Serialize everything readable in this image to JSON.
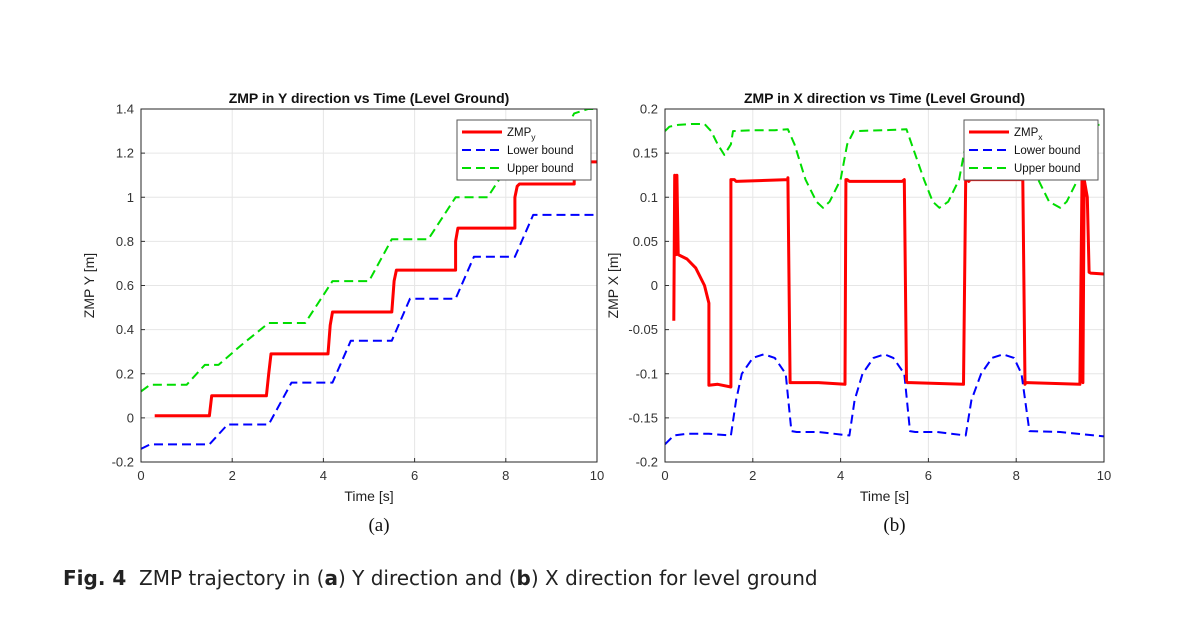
{
  "chart_data": [
    {
      "type": "line",
      "title": "ZMP in Y direction vs Time (Level Ground)",
      "xlabel": "Time [s]",
      "ylabel": "ZMP Y [m]",
      "xlim": [
        0,
        10
      ],
      "ylim": [
        -0.2,
        1.4
      ],
      "xticks": [
        "0",
        "2",
        "4",
        "6",
        "8",
        "10"
      ],
      "yticks": [
        "-0.2",
        "0",
        "0.2",
        "0.4",
        "0.6",
        "0.8",
        "1",
        "1.2",
        "1.4"
      ],
      "grid": true,
      "legend_position": "top-right",
      "panel_label": "(a)",
      "series": [
        {
          "name": "ZMP_y",
          "legend_main": "ZMP",
          "legend_sub": "y",
          "color": "#ff0000",
          "style": "solid",
          "x": [
            0.3,
            1.5,
            1.55,
            2.75,
            2.8,
            2.85,
            3.6,
            4.1,
            4.15,
            4.2,
            5.0,
            5.5,
            5.55,
            5.6,
            6.9,
            6.9,
            6.95,
            7.0,
            8.2,
            8.2,
            8.25,
            8.3,
            9.5,
            9.5,
            9.55,
            10.0
          ],
          "y": [
            0.01,
            0.01,
            0.1,
            0.1,
            0.2,
            0.29,
            0.29,
            0.29,
            0.42,
            0.48,
            0.48,
            0.48,
            0.62,
            0.67,
            0.67,
            0.8,
            0.86,
            0.86,
            0.86,
            1.0,
            1.05,
            1.06,
            1.06,
            1.16,
            1.16,
            1.16
          ]
        },
        {
          "name": "Lower bound",
          "color": "#0000ff",
          "style": "dashed",
          "x": [
            0.0,
            0.2,
            1.5,
            1.9,
            2.8,
            3.3,
            3.6,
            4.2,
            4.6,
            5.0,
            5.5,
            5.9,
            6.3,
            6.9,
            7.3,
            7.6,
            8.2,
            8.6,
            9.5,
            10.0
          ],
          "y": [
            -0.14,
            -0.12,
            -0.12,
            -0.03,
            -0.03,
            0.16,
            0.16,
            0.16,
            0.35,
            0.35,
            0.35,
            0.54,
            0.54,
            0.54,
            0.73,
            0.73,
            0.73,
            0.92,
            0.92,
            0.92
          ]
        },
        {
          "name": "Upper bound",
          "color": "#00dd00",
          "style": "dashed",
          "x": [
            0.0,
            0.2,
            1.0,
            1.4,
            1.7,
            2.2,
            2.8,
            3.0,
            3.6,
            4.2,
            4.5,
            5.0,
            5.5,
            5.7,
            6.3,
            6.9,
            7.2,
            7.6,
            8.2,
            8.5,
            9.0,
            9.5,
            9.8,
            10.0
          ],
          "y": [
            0.12,
            0.15,
            0.15,
            0.24,
            0.24,
            0.33,
            0.43,
            0.43,
            0.43,
            0.62,
            0.62,
            0.62,
            0.81,
            0.81,
            0.81,
            1.0,
            1.0,
            1.0,
            1.19,
            1.19,
            1.19,
            1.38,
            1.4,
            1.4
          ]
        }
      ]
    },
    {
      "type": "line",
      "title": "ZMP in X direction vs Time (Level Ground)",
      "xlabel": "Time [s]",
      "ylabel": "ZMP X [m]",
      "xlim": [
        0,
        10
      ],
      "ylim": [
        -0.2,
        0.2
      ],
      "xticks": [
        "0",
        "2",
        "4",
        "6",
        "8",
        "10"
      ],
      "yticks": [
        "-0.2",
        "-0.15",
        "-0.1",
        "-0.05",
        "0",
        "0.05",
        "0.1",
        "0.15",
        "0.2"
      ],
      "grid": true,
      "legend_position": "top-right",
      "panel_label": "(b)",
      "series": [
        {
          "name": "ZMP_x",
          "legend_main": "ZMP",
          "legend_sub": "x",
          "color": "#ff0000",
          "style": "solid",
          "x": [
            0.2,
            0.22,
            0.25,
            0.27,
            0.3,
            0.5,
            0.7,
            0.9,
            1.0,
            1.0,
            1.2,
            1.5,
            1.5,
            1.58,
            1.62,
            2.8,
            2.8,
            2.85,
            2.9,
            3.5,
            4.1,
            4.12,
            4.15,
            4.2,
            5.4,
            5.45,
            5.5,
            5.52,
            5.6,
            6.8,
            6.85,
            6.9,
            6.92,
            6.95,
            8.15,
            8.2,
            8.22,
            8.25,
            9.45,
            9.5,
            9.52,
            9.55,
            9.62,
            9.66,
            9.7,
            10.0
          ],
          "y": [
            -0.04,
            0.125,
            0.035,
            0.125,
            0.035,
            0.03,
            0.02,
            0.0,
            -0.02,
            -0.113,
            -0.112,
            -0.115,
            0.12,
            0.12,
            0.118,
            0.12,
            0.122,
            -0.11,
            -0.11,
            -0.11,
            -0.112,
            0.12,
            0.12,
            0.118,
            0.118,
            0.12,
            -0.108,
            -0.11,
            -0.11,
            -0.112,
            0.12,
            0.12,
            0.118,
            0.12,
            0.12,
            -0.112,
            -0.11,
            -0.11,
            -0.112,
            0.12,
            -0.11,
            0.12,
            0.1,
            0.015,
            0.014,
            0.013
          ]
        },
        {
          "name": "Lower bound",
          "color": "#0000ff",
          "style": "dashed",
          "x": [
            0.0,
            0.2,
            0.5,
            1.0,
            1.5,
            1.62,
            1.75,
            2.0,
            2.25,
            2.5,
            2.75,
            2.88,
            3.0,
            3.5,
            4.2,
            4.32,
            4.5,
            4.75,
            5.0,
            5.2,
            5.45,
            5.58,
            5.7,
            6.2,
            6.85,
            6.98,
            7.2,
            7.45,
            7.7,
            7.95,
            8.12,
            8.3,
            9.0,
            10.0
          ],
          "y": [
            -0.18,
            -0.17,
            -0.168,
            -0.168,
            -0.17,
            -0.13,
            -0.1,
            -0.082,
            -0.078,
            -0.082,
            -0.1,
            -0.165,
            -0.166,
            -0.166,
            -0.17,
            -0.13,
            -0.1,
            -0.082,
            -0.078,
            -0.082,
            -0.1,
            -0.165,
            -0.166,
            -0.166,
            -0.17,
            -0.13,
            -0.1,
            -0.082,
            -0.078,
            -0.082,
            -0.1,
            -0.165,
            -0.166,
            -0.171
          ]
        },
        {
          "name": "Upper bound",
          "color": "#00dd00",
          "style": "dashed",
          "x": [
            0.0,
            0.1,
            0.3,
            0.6,
            0.9,
            1.05,
            1.2,
            1.35,
            1.5,
            1.55,
            2.0,
            2.5,
            2.8,
            2.95,
            3.2,
            3.45,
            3.6,
            3.75,
            4.0,
            4.15,
            4.3,
            5.0,
            5.5,
            5.62,
            5.9,
            6.1,
            6.25,
            6.45,
            6.7,
            6.85,
            7.0,
            7.5,
            8.1,
            8.25,
            8.5,
            8.75,
            9.0,
            9.15,
            9.4,
            9.55,
            9.7,
            10.0
          ],
          "y": [
            0.175,
            0.18,
            0.182,
            0.183,
            0.183,
            0.175,
            0.16,
            0.148,
            0.16,
            0.175,
            0.176,
            0.176,
            0.177,
            0.16,
            0.12,
            0.095,
            0.088,
            0.095,
            0.12,
            0.16,
            0.175,
            0.176,
            0.177,
            0.16,
            0.12,
            0.095,
            0.088,
            0.095,
            0.12,
            0.16,
            0.175,
            0.176,
            0.177,
            0.16,
            0.12,
            0.095,
            0.088,
            0.095,
            0.12,
            0.16,
            0.182,
            0.182
          ]
        }
      ]
    }
  ],
  "caption": {
    "prefix": "Fig. 4",
    "t1": "ZMP trajectory in (",
    "a": "a",
    "t2": ") Y direction and (",
    "b": "b",
    "t3": ") X direction for level ground"
  }
}
